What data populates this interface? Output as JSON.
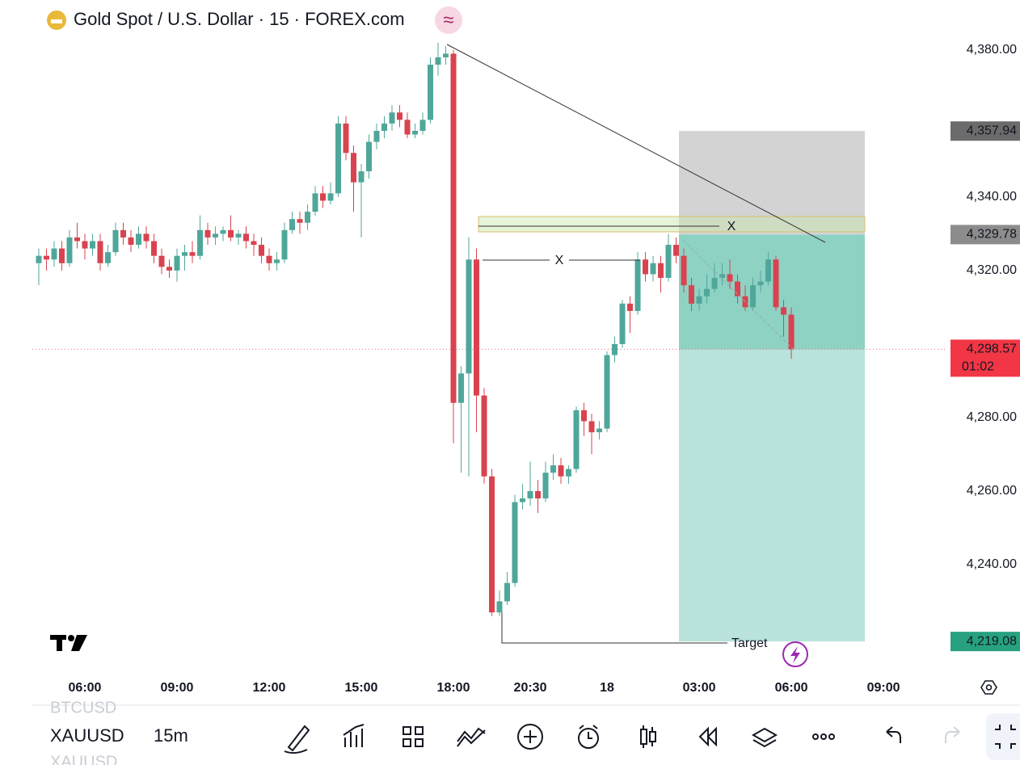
{
  "header": {
    "title": "Gold Spot / U.S. Dollar · 15 · FOREX.com"
  },
  "chart_data": {
    "type": "candlestick",
    "colors": {
      "up": "#4fa79a",
      "down": "#d9434f"
    },
    "xlim": [
      -0.84,
      118.1
    ],
    "ylim": [
      4211.2,
      4393.6
    ],
    "xticks": [
      {
        "value": 6,
        "label": "06:00"
      },
      {
        "value": 18,
        "label": "09:00"
      },
      {
        "value": 30,
        "label": "12:00"
      },
      {
        "value": 42,
        "label": "15:00"
      },
      {
        "value": 54,
        "label": "18:00"
      },
      {
        "value": 64,
        "label": "20:30"
      },
      {
        "value": 74,
        "label": "18"
      },
      {
        "value": 86,
        "label": "03:00"
      },
      {
        "value": 98,
        "label": "06:00"
      },
      {
        "value": 110,
        "label": "09:00"
      }
    ],
    "yticks": [
      {
        "value": 4380,
        "label": "4,380.00"
      },
      {
        "value": 4340,
        "label": "4,340.00"
      },
      {
        "value": 4320,
        "label": "4,320.00"
      },
      {
        "value": 4280,
        "label": "4,280.00"
      },
      {
        "value": 4260,
        "label": "4,260.00"
      },
      {
        "value": 4240,
        "label": "4,240.00"
      }
    ],
    "candles": [
      [
        4322,
        4326,
        4316,
        4324
      ],
      [
        4324,
        4326,
        4320,
        4323
      ],
      [
        4323,
        4328,
        4321,
        4326
      ],
      [
        4326,
        4328,
        4320,
        4322
      ],
      [
        4322,
        4331,
        4321,
        4329
      ],
      [
        4329,
        4333,
        4326,
        4328
      ],
      [
        4328,
        4330,
        4323,
        4326
      ],
      [
        4326,
        4330,
        4324,
        4328
      ],
      [
        4328,
        4330,
        4320,
        4322
      ],
      [
        4322,
        4327,
        4321,
        4325
      ],
      [
        4325,
        4333,
        4324,
        4331
      ],
      [
        4331,
        4333,
        4327,
        4329
      ],
      [
        4329,
        4331,
        4325,
        4327
      ],
      [
        4327,
        4332,
        4326,
        4330
      ],
      [
        4330,
        4332,
        4326,
        4328
      ],
      [
        4328,
        4330,
        4322,
        4324
      ],
      [
        4324,
        4326,
        4319,
        4321
      ],
      [
        4321,
        4323,
        4318,
        4320
      ],
      [
        4320,
        4326,
        4317,
        4324
      ],
      [
        4324,
        4327,
        4320,
        4325
      ],
      [
        4325,
        4328,
        4322,
        4324
      ],
      [
        4324,
        4335,
        4323,
        4331
      ],
      [
        4331,
        4333,
        4327,
        4329
      ],
      [
        4329,
        4332,
        4327,
        4330
      ],
      [
        4330,
        4332,
        4328,
        4331
      ],
      [
        4331,
        4335,
        4328,
        4329
      ],
      [
        4329,
        4331,
        4327,
        4330
      ],
      [
        4330,
        4332,
        4326,
        4328
      ],
      [
        4328,
        4330,
        4324,
        4327
      ],
      [
        4327,
        4329,
        4322,
        4324
      ],
      [
        4324,
        4326,
        4320,
        4322
      ],
      [
        4322,
        4325,
        4320,
        4323
      ],
      [
        4323,
        4333,
        4322,
        4331
      ],
      [
        4331,
        4336,
        4330,
        4334
      ],
      [
        4334,
        4336,
        4330,
        4333
      ],
      [
        4333,
        4338,
        4331,
        4336
      ],
      [
        4336,
        4343,
        4335,
        4341
      ],
      [
        4341,
        4343,
        4337,
        4339
      ],
      [
        4339,
        4344,
        4338,
        4341
      ],
      [
        4341,
        4362,
        4340,
        4360
      ],
      [
        4360,
        4362,
        4350,
        4352
      ],
      [
        4352,
        4354,
        4336,
        4344
      ],
      [
        4344,
        4349,
        4329,
        4347
      ],
      [
        4347,
        4357,
        4345,
        4355
      ],
      [
        4355,
        4360,
        4353,
        4358
      ],
      [
        4358,
        4362,
        4356,
        4360
      ],
      [
        4360,
        4365,
        4358,
        4363
      ],
      [
        4363,
        4365,
        4359,
        4361
      ],
      [
        4361,
        4363,
        4356,
        4357
      ],
      [
        4357,
        4360,
        4356,
        4358
      ],
      [
        4358,
        4363,
        4357,
        4361
      ],
      [
        4361,
        4378,
        4360,
        4376
      ],
      [
        4376,
        4382,
        4373,
        4378
      ],
      [
        4378,
        4381,
        4376,
        4379
      ],
      [
        4379,
        4380,
        4273,
        4284
      ],
      [
        4284,
        4294,
        4265,
        4292
      ],
      [
        4292,
        4329,
        4264,
        4323
      ],
      [
        4323,
        4326,
        4276,
        4286
      ],
      [
        4286,
        4288,
        4262,
        4264
      ],
      [
        4264,
        4266,
        4226,
        4227
      ],
      [
        4227,
        4233,
        4226,
        4230
      ],
      [
        4230,
        4238,
        4229,
        4235
      ],
      [
        4235,
        4259,
        4234,
        4257
      ],
      [
        4257,
        4262,
        4255,
        4258
      ],
      [
        4258,
        4268,
        4256,
        4260
      ],
      [
        4260,
        4263,
        4254,
        4258
      ],
      [
        4258,
        4268,
        4257,
        4265
      ],
      [
        4265,
        4270,
        4263,
        4267
      ],
      [
        4267,
        4269,
        4262,
        4264
      ],
      [
        4264,
        4267,
        4262,
        4266
      ],
      [
        4266,
        4283,
        4265,
        4282
      ],
      [
        4282,
        4284,
        4275,
        4279
      ],
      [
        4279,
        4281,
        4270,
        4276
      ],
      [
        4276,
        4279,
        4274,
        4277
      ],
      [
        4277,
        4298,
        4276,
        4297
      ],
      [
        4297,
        4302,
        4295,
        4300
      ],
      [
        4300,
        4312,
        4299,
        4311
      ],
      [
        4311,
        4313,
        4303,
        4309
      ],
      [
        4309,
        4325,
        4308,
        4323
      ],
      [
        4323,
        4325,
        4317,
        4319
      ],
      [
        4319,
        4324,
        4317,
        4322
      ],
      [
        4322,
        4324,
        4314,
        4318
      ],
      [
        4318,
        4330,
        4317,
        4327
      ],
      [
        4327,
        4329,
        4322,
        4324
      ],
      [
        4324,
        4326,
        4314,
        4316
      ],
      [
        4316,
        4318,
        4309,
        4311
      ],
      [
        4311,
        4315,
        4309,
        4313
      ],
      [
        4313,
        4319,
        4311,
        4315
      ],
      [
        4315,
        4322,
        4314,
        4318
      ],
      [
        4318,
        4322,
        4316,
        4319
      ],
      [
        4319,
        4323,
        4315,
        4317
      ],
      [
        4317,
        4319,
        4311,
        4313
      ],
      [
        4313,
        4316,
        4309,
        4310
      ],
      [
        4310,
        4318,
        4309,
        4316
      ],
      [
        4316,
        4320,
        4314,
        4317
      ],
      [
        4317,
        4325,
        4316,
        4323
      ],
      [
        4323,
        4324,
        4309,
        4310
      ],
      [
        4310,
        4312,
        4302,
        4308
      ],
      [
        4308,
        4310,
        4296,
        4298.57
      ]
    ],
    "position": {
      "stop": {
        "value": 4357.94,
        "label": "4,357.94"
      },
      "entry": {
        "value": 4329.78,
        "label": "4,329.78"
      },
      "target": {
        "value": 4219.08,
        "label": "4,219.08"
      }
    },
    "last_price": {
      "value": 4298.57,
      "label": "4,298.57",
      "countdown": "01:02"
    },
    "annotations": [
      "X",
      "X",
      "Target"
    ]
  },
  "toolbar": {
    "symbols": [
      "BTCUSD",
      "XAUUSD",
      "XAUUSD"
    ],
    "interval": "15m"
  }
}
